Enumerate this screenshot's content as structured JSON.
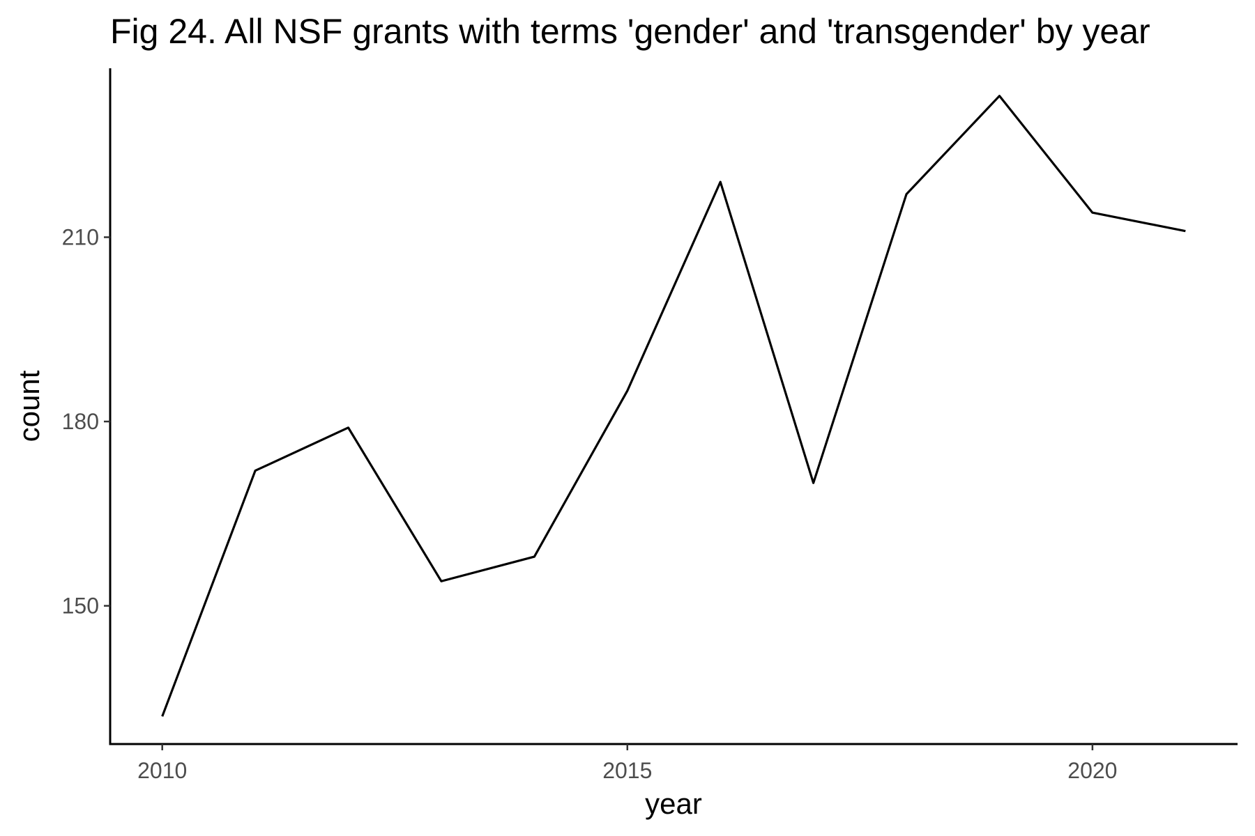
{
  "chart_data": {
    "type": "line",
    "title": "Fig 24. All NSF grants with terms 'gender' and 'transgender' by year",
    "xlabel": "year",
    "ylabel": "count",
    "x": [
      2010,
      2011,
      2012,
      2013,
      2014,
      2015,
      2016,
      2017,
      2018,
      2019,
      2020,
      2021
    ],
    "y": [
      132,
      172,
      179,
      154,
      158,
      185,
      219,
      170,
      217,
      233,
      214,
      211
    ],
    "x_ticks": [
      2010,
      2015,
      2020
    ],
    "x_tick_labels": [
      "2010",
      "2015",
      "2020"
    ],
    "y_ticks": [
      150,
      180,
      210
    ],
    "y_tick_labels": [
      "150",
      "180",
      "210"
    ],
    "xlim": [
      2009.44,
      2021.56
    ],
    "ylim": [
      127.5,
      237.5
    ],
    "grid": false,
    "legend": "none",
    "line_color": "#000000"
  }
}
